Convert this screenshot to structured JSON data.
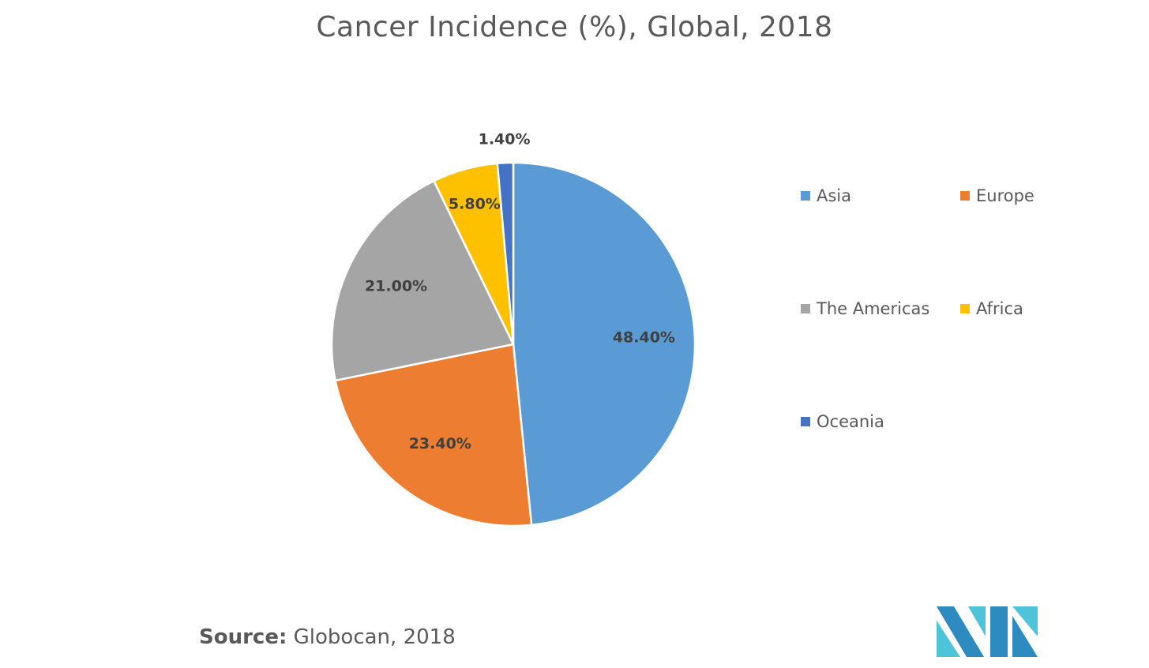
{
  "chart_data": {
    "type": "pie",
    "title": "Cancer Incidence (%), Global, 2018",
    "slices": [
      {
        "name": "Asia",
        "value": 48.4,
        "label": "48.40%",
        "color": "#5B9BD5"
      },
      {
        "name": "Europe",
        "value": 23.4,
        "label": "23.40%",
        "color": "#ED7D31"
      },
      {
        "name": "The Americas",
        "value": 21.0,
        "label": "21.00%",
        "color": "#A5A5A5"
      },
      {
        "name": "Africa",
        "value": 5.8,
        "label": "5.80%",
        "color": "#FFC000"
      },
      {
        "name": "Oceania",
        "value": 1.4,
        "label": "1.40%",
        "color": "#4472C4"
      }
    ],
    "legend_position": "right"
  },
  "source": {
    "label": "Source:",
    "text": "Globocan, 2018"
  }
}
